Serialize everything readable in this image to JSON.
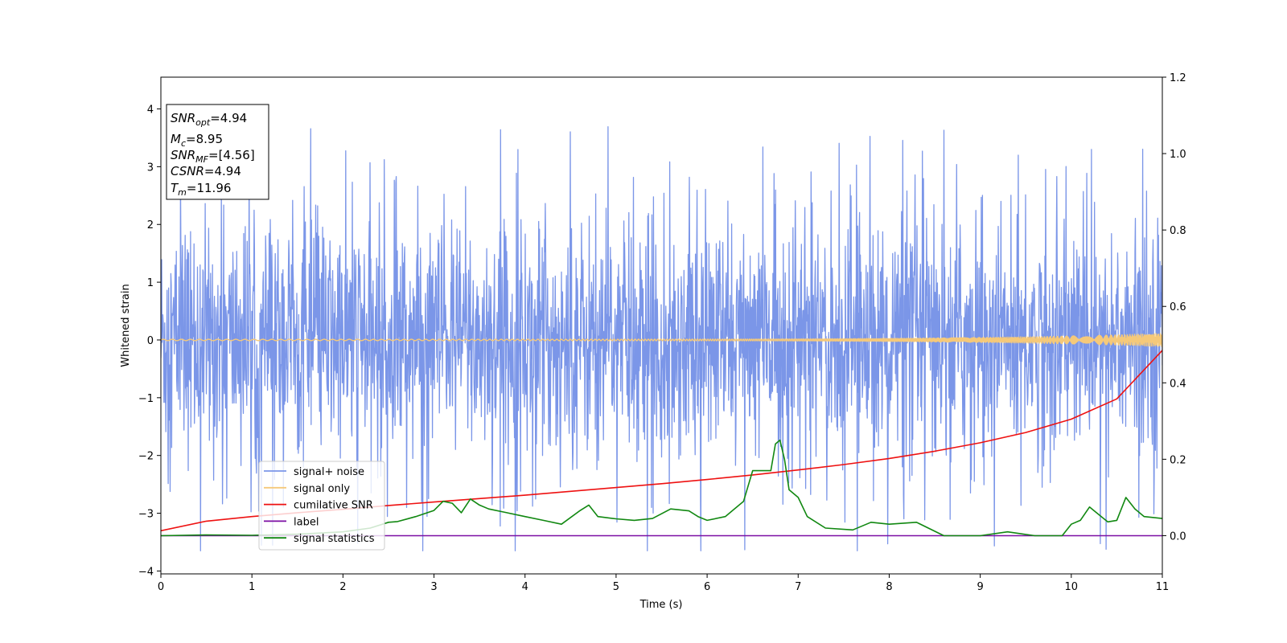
{
  "chart_data": {
    "type": "line",
    "xlabel": "Time (s)",
    "ylabel": "Whitened strain",
    "xlim": [
      0,
      11
    ],
    "ylim": [
      -4.05,
      4.55
    ],
    "y2lim": [
      -0.1,
      1.2
    ],
    "xticks": [
      "0",
      "1",
      "2",
      "3",
      "4",
      "5",
      "6",
      "7",
      "8",
      "9",
      "10",
      "11"
    ],
    "yticks": [
      "−4",
      "−3",
      "−2",
      "−1",
      "0",
      "1",
      "2",
      "3",
      "4"
    ],
    "y2ticks": [
      "0.0",
      "0.2",
      "0.4",
      "0.6",
      "0.8",
      "1.0",
      "1.2"
    ],
    "legend_position": "lower-left",
    "colors": {
      "noise": "#7b96e8",
      "signal": "#f5c97a",
      "cumulative": "#ee1111",
      "label": "#7b0ea3",
      "statistics": "#118811"
    },
    "series": [
      {
        "name": "signal+ noise",
        "axis": "left",
        "kind": "noise",
        "amplitude_range": [
          -3.65,
          3.7
        ]
      },
      {
        "name": "signal only",
        "axis": "left",
        "kind": "chirp",
        "final_amplitude": 0.1
      },
      {
        "name": "cumilative SNR",
        "axis": "right",
        "x": [
          0,
          0.5,
          1,
          1.5,
          2,
          2.5,
          3,
          3.5,
          4,
          4.5,
          5,
          5.5,
          6,
          6.5,
          7,
          7.5,
          8,
          8.5,
          9,
          9.5,
          10,
          10.5,
          11
        ],
        "values": [
          0.013,
          0.038,
          0.05,
          0.06,
          0.069,
          0.079,
          0.088,
          0.097,
          0.106,
          0.116,
          0.126,
          0.136,
          0.147,
          0.159,
          0.172,
          0.186,
          0.202,
          0.221,
          0.243,
          0.27,
          0.305,
          0.358,
          0.485
        ]
      },
      {
        "name": "label",
        "axis": "right",
        "x": [
          0,
          11
        ],
        "values": [
          0,
          0
        ]
      },
      {
        "name": "signal statistics",
        "axis": "right",
        "x": [
          0,
          0.5,
          1,
          1.5,
          2,
          2.3,
          2.5,
          2.6,
          2.8,
          3.0,
          3.1,
          3.2,
          3.3,
          3.4,
          3.5,
          3.6,
          3.8,
          4.0,
          4.2,
          4.4,
          4.6,
          4.7,
          4.8,
          5.0,
          5.2,
          5.4,
          5.6,
          5.8,
          5.9,
          6.0,
          6.2,
          6.4,
          6.5,
          6.6,
          6.7,
          6.75,
          6.8,
          6.85,
          6.9,
          7.0,
          7.1,
          7.3,
          7.6,
          7.8,
          8.0,
          8.3,
          8.6,
          9.0,
          9.3,
          9.6,
          9.9,
          10.0,
          10.1,
          10.2,
          10.4,
          10.5,
          10.6,
          10.7,
          10.8,
          11.0
        ],
        "values": [
          0,
          0.002,
          0.001,
          0.004,
          0.01,
          0.02,
          0.035,
          0.037,
          0.05,
          0.066,
          0.09,
          0.085,
          0.06,
          0.096,
          0.08,
          0.07,
          0.06,
          0.05,
          0.04,
          0.03,
          0.065,
          0.08,
          0.05,
          0.044,
          0.04,
          0.045,
          0.07,
          0.065,
          0.05,
          0.04,
          0.05,
          0.09,
          0.17,
          0.17,
          0.17,
          0.24,
          0.25,
          0.2,
          0.12,
          0.1,
          0.05,
          0.02,
          0.015,
          0.035,
          0.03,
          0.035,
          0.0,
          0.0,
          0.01,
          0.0,
          0.0,
          0.03,
          0.04,
          0.075,
          0.036,
          0.04,
          0.1,
          0.07,
          0.05,
          0.045
        ]
      }
    ],
    "annotation_box": [
      {
        "sym": "SNR",
        "sub": "opt",
        "value": "=4.94"
      },
      {
        "sym": "M",
        "sub": "c",
        "value": "=8.95"
      },
      {
        "sym": "SNR",
        "sub": "MF",
        "value": "=[4.56]"
      },
      {
        "sym": "CSNR",
        "sub": "",
        "value": "=4.94"
      },
      {
        "sym": "T",
        "sub": "m",
        "value": "=11.96"
      }
    ]
  }
}
